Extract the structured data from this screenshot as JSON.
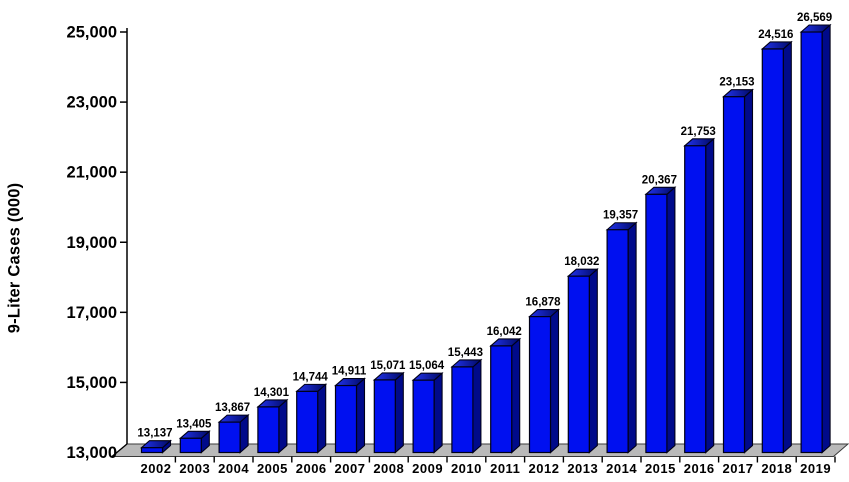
{
  "chart_data": {
    "type": "bar",
    "style": "3d-column",
    "title": "",
    "xlabel": "",
    "ylabel": "9-Liter Cases (000)",
    "categories": [
      "2002",
      "2003",
      "2004",
      "2005",
      "2006",
      "2007",
      "2008",
      "2009",
      "2010",
      "2011",
      "2012",
      "2013",
      "2014",
      "2015",
      "2016",
      "2017",
      "2018",
      "2019"
    ],
    "values": [
      13137,
      13405,
      13867,
      14301,
      14744,
      14911,
      15071,
      15064,
      15443,
      16042,
      16878,
      18032,
      19357,
      20367,
      21753,
      23153,
      24516,
      26569
    ],
    "value_labels": [
      "13,137",
      "13,405",
      "13,867",
      "14,301",
      "14,744",
      "14,911",
      "15,071",
      "15,064",
      "15,443",
      "16,042",
      "16,878",
      "18,032",
      "19,357",
      "20,367",
      "21,753",
      "23,153",
      "24,516",
      "26,569"
    ],
    "y_tick_values": [
      13000,
      15000,
      17000,
      19000,
      21000,
      23000,
      25000
    ],
    "y_tick_labels": [
      "13,000",
      "15,000",
      "17,000",
      "19,000",
      "21,000",
      "23,000",
      "25,000"
    ],
    "ylim": [
      13000,
      25000
    ],
    "grid": false,
    "legend": false,
    "notes": "2019 column is visually clipped at the 25,000 axis maximum",
    "colors": {
      "bar_front": "#0010f0",
      "bar_top_light": "#2233ee",
      "bar_top_dark": "#000a66",
      "bar_side": "#000a8a",
      "bar_outline": "#000018",
      "floor": "#b9b9b9",
      "floor_outline": "#3a3a3a",
      "axis": "#000000",
      "text": "#000000",
      "background": "#ffffff"
    }
  }
}
